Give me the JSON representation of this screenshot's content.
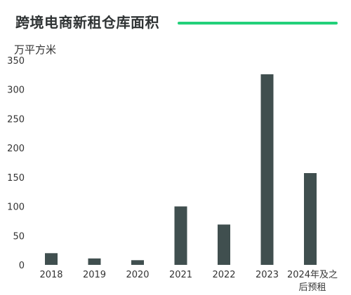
{
  "chart_data": {
    "type": "bar",
    "title": "跨境电商新租仓库面积",
    "unit": "万平方米",
    "categories": [
      "2018",
      "2019",
      "2020",
      "2021",
      "2022",
      "2023",
      "2024年及之后预租"
    ],
    "category_lines": [
      [
        "2018"
      ],
      [
        "2019"
      ],
      [
        "2020"
      ],
      [
        "2021"
      ],
      [
        "2022"
      ],
      [
        "2023"
      ],
      [
        "2024年及之",
        "后预租"
      ]
    ],
    "values": [
      20,
      11,
      8,
      100,
      69,
      326,
      157
    ],
    "ylim": [
      0,
      350
    ],
    "yticks": [
      0,
      50,
      100,
      150,
      200,
      250,
      300,
      350
    ],
    "grid": false,
    "bar_color": "#404f4f",
    "accent_color": "#22d07a"
  }
}
